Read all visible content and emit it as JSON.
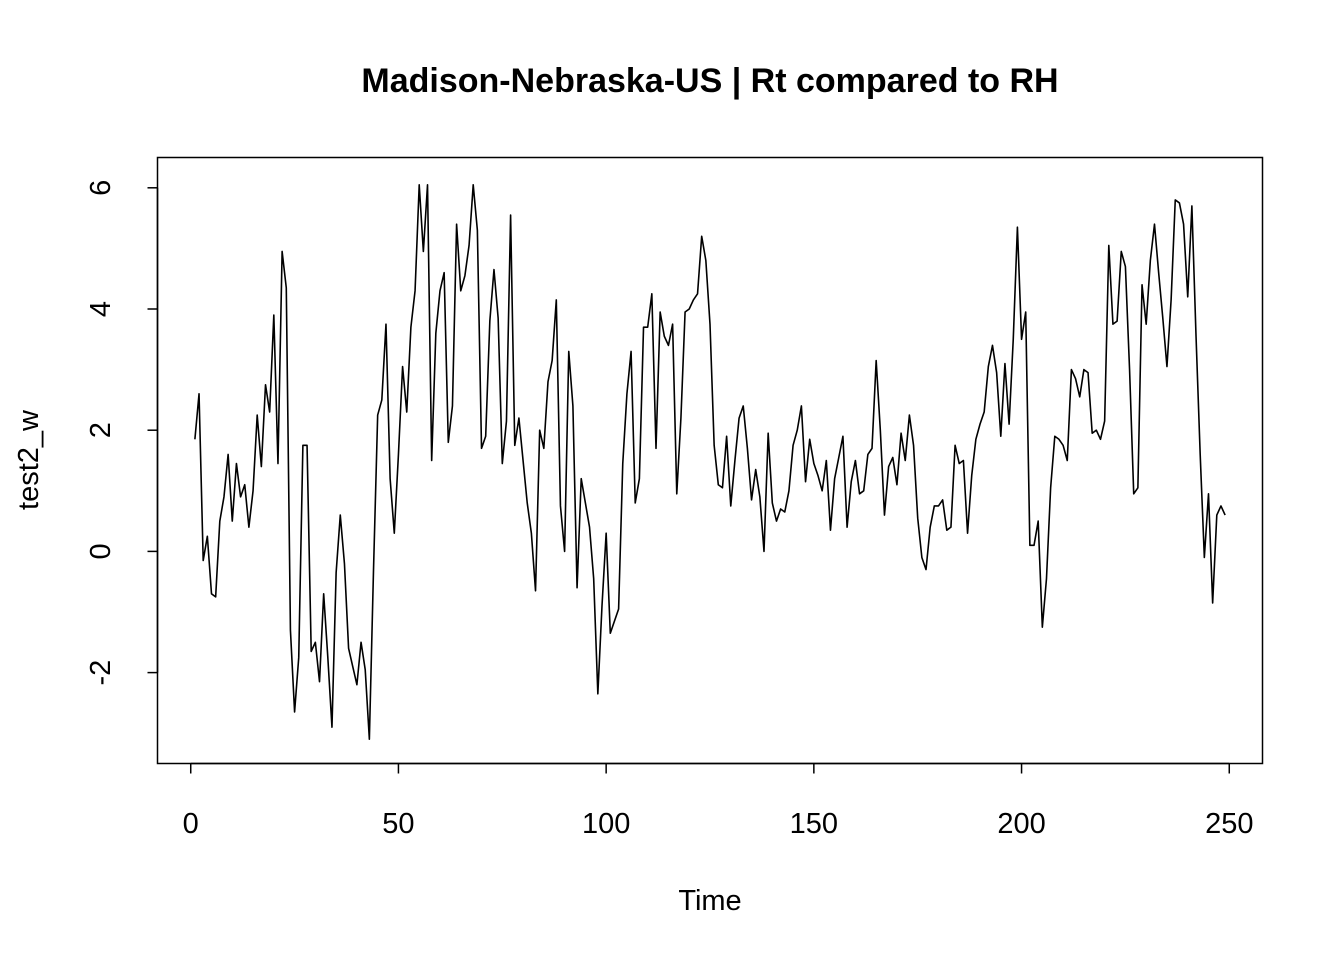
{
  "chart_data": {
    "type": "line",
    "title": "Madison-Nebraska-US | Rt compared to RH",
    "xlabel": "Time",
    "ylabel": "test2_w",
    "xlim": [
      -8,
      258
    ],
    "ylim": [
      -3.5,
      6.5
    ],
    "x_ticks": [
      0,
      50,
      100,
      150,
      200,
      250
    ],
    "y_ticks": [
      -2,
      0,
      2,
      4,
      6
    ],
    "grid": false,
    "legend": "none",
    "line_color": "#000000",
    "series": [
      {
        "x_start": 1,
        "values": [
          1.85,
          2.6,
          -0.15,
          0.25,
          -0.7,
          -0.75,
          0.5,
          0.9,
          1.6,
          0.5,
          1.45,
          0.9,
          1.1,
          0.4,
          1.0,
          2.25,
          1.4,
          2.75,
          2.3,
          3.9,
          1.45,
          4.95,
          4.35,
          -1.3,
          -2.65,
          -1.75,
          1.75,
          1.75,
          -1.65,
          -1.5,
          -2.15,
          -0.7,
          -1.75,
          -2.9,
          -0.35,
          0.6,
          -0.2,
          -1.6,
          -1.9,
          -2.2,
          -1.5,
          -1.95,
          -3.1,
          -0.3,
          2.25,
          2.5,
          3.75,
          1.2,
          0.3,
          1.6,
          3.05,
          2.3,
          3.7,
          4.3,
          6.05,
          4.95,
          6.05,
          1.5,
          3.6,
          4.3,
          4.6,
          1.8,
          2.4,
          5.4,
          4.3,
          4.55,
          5.05,
          6.05,
          5.3,
          1.7,
          1.9,
          3.8,
          4.65,
          3.85,
          1.45,
          2.15,
          5.55,
          1.75,
          2.2,
          1.5,
          0.8,
          0.3,
          -0.65,
          2.0,
          1.7,
          2.8,
          3.15,
          4.15,
          0.75,
          0.0,
          3.3,
          2.4,
          -0.6,
          1.2,
          0.8,
          0.4,
          -0.45,
          -2.35,
          -0.9,
          0.3,
          -1.35,
          -1.15,
          -0.95,
          1.45,
          2.6,
          3.3,
          0.8,
          1.2,
          3.7,
          3.7,
          4.25,
          1.7,
          3.95,
          3.55,
          3.4,
          3.75,
          0.95,
          2.2,
          3.95,
          4.0,
          4.15,
          4.25,
          5.2,
          4.8,
          3.75,
          1.75,
          1.1,
          1.05,
          1.9,
          0.75,
          1.5,
          2.2,
          2.4,
          1.7,
          0.85,
          1.35,
          0.9,
          0.0,
          1.95,
          0.8,
          0.5,
          0.7,
          0.65,
          1.0,
          1.75,
          2.0,
          2.4,
          1.15,
          1.85,
          1.45,
          1.25,
          1.0,
          1.5,
          0.35,
          1.2,
          1.55,
          1.9,
          0.4,
          1.15,
          1.5,
          0.95,
          1.0,
          1.6,
          1.7,
          3.15,
          2.0,
          0.6,
          1.4,
          1.55,
          1.1,
          1.95,
          1.5,
          2.25,
          1.75,
          0.55,
          -0.1,
          -0.3,
          0.4,
          0.75,
          0.75,
          0.85,
          0.35,
          0.4,
          1.75,
          1.45,
          1.5,
          0.3,
          1.25,
          1.85,
          2.1,
          2.3,
          3.05,
          3.4,
          2.95,
          1.9,
          3.1,
          2.1,
          3.5,
          5.35,
          3.5,
          3.95,
          0.1,
          0.1,
          0.5,
          -1.25,
          -0.45,
          1.05,
          1.9,
          1.85,
          1.75,
          1.5,
          3.0,
          2.85,
          2.55,
          3.0,
          2.95,
          1.95,
          2.0,
          1.85,
          2.15,
          5.05,
          3.75,
          3.8,
          4.95,
          4.7,
          3.0,
          0.95,
          1.05,
          4.4,
          3.75,
          4.8,
          5.4,
          4.6,
          3.85,
          3.05,
          4.15,
          5.8,
          5.75,
          5.4,
          4.2,
          5.7,
          3.55,
          1.6,
          -0.1,
          0.95,
          -0.85,
          0.6,
          0.75,
          0.6
        ]
      }
    ]
  }
}
